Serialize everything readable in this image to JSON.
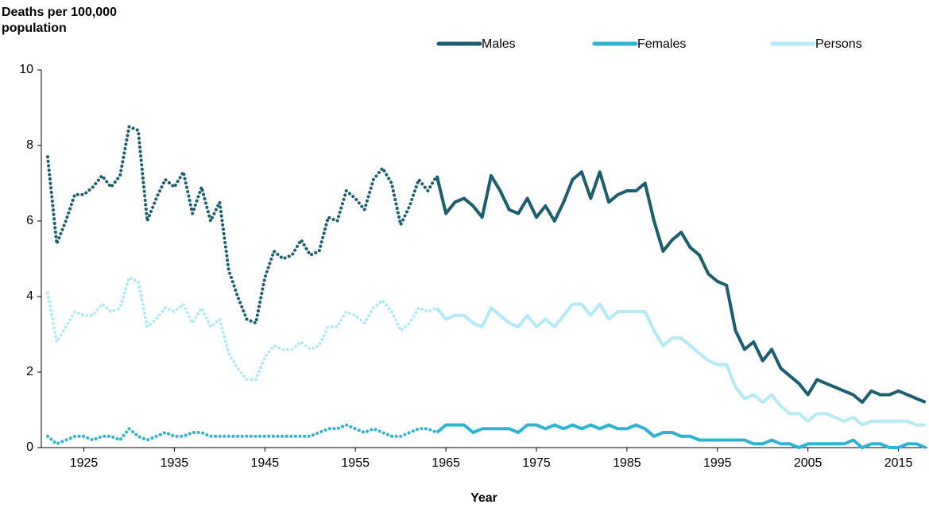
{
  "chart_data": {
    "type": "line",
    "y_label": "Deaths per 100,000 population",
    "x_label": "Year",
    "dotted_until": 1964,
    "x": [
      1921,
      1922,
      1923,
      1924,
      1925,
      1926,
      1927,
      1928,
      1929,
      1930,
      1931,
      1932,
      1933,
      1934,
      1935,
      1936,
      1937,
      1938,
      1939,
      1940,
      1941,
      1942,
      1943,
      1944,
      1945,
      1946,
      1947,
      1948,
      1949,
      1950,
      1951,
      1952,
      1953,
      1954,
      1955,
      1956,
      1957,
      1958,
      1959,
      1960,
      1961,
      1962,
      1963,
      1964,
      1965,
      1966,
      1967,
      1968,
      1969,
      1970,
      1971,
      1972,
      1973,
      1974,
      1975,
      1976,
      1977,
      1978,
      1979,
      1980,
      1981,
      1982,
      1983,
      1984,
      1985,
      1986,
      1987,
      1988,
      1989,
      1990,
      1991,
      1992,
      1993,
      1994,
      1995,
      1996,
      1997,
      1998,
      1999,
      2000,
      2001,
      2002,
      2003,
      2004,
      2005,
      2006,
      2007,
      2008,
      2009,
      2010,
      2011,
      2012,
      2013,
      2014,
      2015,
      2016,
      2017,
      2018
    ],
    "series": [
      {
        "name": "Males",
        "color": "#1b5e70",
        "values": [
          7.7,
          5.4,
          6.0,
          6.7,
          6.7,
          6.9,
          7.2,
          6.9,
          7.2,
          8.5,
          8.4,
          6.0,
          6.6,
          7.1,
          6.9,
          7.3,
          6.2,
          6.9,
          6.0,
          6.5,
          4.7,
          4.0,
          3.4,
          3.3,
          4.5,
          5.2,
          5.0,
          5.1,
          5.5,
          5.1,
          5.2,
          6.1,
          6.0,
          6.8,
          6.6,
          6.3,
          7.1,
          7.4,
          7.0,
          5.9,
          6.4,
          7.1,
          6.8,
          7.2,
          6.2,
          6.5,
          6.6,
          6.4,
          6.1,
          7.2,
          6.8,
          6.3,
          6.2,
          6.6,
          6.1,
          6.4,
          6.0,
          6.5,
          7.1,
          7.3,
          6.6,
          7.3,
          6.5,
          6.7,
          6.8,
          6.8,
          7.0,
          6.0,
          5.2,
          5.5,
          5.7,
          5.3,
          5.1,
          4.6,
          4.4,
          4.3,
          3.1,
          2.6,
          2.8,
          2.3,
          2.6,
          2.1,
          1.9,
          1.7,
          1.4,
          1.8,
          1.7,
          1.6,
          1.5,
          1.4,
          1.2,
          1.5,
          1.4,
          1.4,
          1.5,
          1.4,
          1.3,
          1.2
        ]
      },
      {
        "name": "Females",
        "color": "#2eb3d6",
        "values": [
          0.3,
          0.1,
          0.2,
          0.3,
          0.3,
          0.2,
          0.3,
          0.3,
          0.2,
          0.5,
          0.3,
          0.2,
          0.3,
          0.4,
          0.3,
          0.3,
          0.4,
          0.4,
          0.3,
          0.3,
          0.3,
          0.3,
          0.3,
          0.3,
          0.3,
          0.3,
          0.3,
          0.3,
          0.3,
          0.3,
          0.4,
          0.5,
          0.5,
          0.6,
          0.5,
          0.4,
          0.5,
          0.4,
          0.3,
          0.3,
          0.4,
          0.5,
          0.5,
          0.4,
          0.6,
          0.6,
          0.6,
          0.4,
          0.5,
          0.5,
          0.5,
          0.5,
          0.4,
          0.6,
          0.6,
          0.5,
          0.6,
          0.5,
          0.6,
          0.5,
          0.6,
          0.5,
          0.6,
          0.5,
          0.5,
          0.6,
          0.5,
          0.3,
          0.4,
          0.4,
          0.3,
          0.3,
          0.2,
          0.2,
          0.2,
          0.2,
          0.2,
          0.2,
          0.1,
          0.1,
          0.2,
          0.1,
          0.1,
          0.0,
          0.1,
          0.1,
          0.1,
          0.1,
          0.1,
          0.2,
          0.0,
          0.1,
          0.1,
          0.0,
          0.0,
          0.1,
          0.1,
          0.0
        ]
      },
      {
        "name": "Persons",
        "color": "#b3ebf7",
        "values": [
          4.1,
          2.8,
          3.2,
          3.6,
          3.5,
          3.5,
          3.8,
          3.6,
          3.7,
          4.5,
          4.4,
          3.2,
          3.4,
          3.7,
          3.6,
          3.8,
          3.3,
          3.7,
          3.2,
          3.4,
          2.5,
          2.1,
          1.8,
          1.8,
          2.4,
          2.7,
          2.6,
          2.6,
          2.8,
          2.6,
          2.7,
          3.2,
          3.2,
          3.6,
          3.5,
          3.3,
          3.7,
          3.9,
          3.6,
          3.1,
          3.3,
          3.7,
          3.6,
          3.7,
          3.4,
          3.5,
          3.5,
          3.3,
          3.2,
          3.7,
          3.5,
          3.3,
          3.2,
          3.5,
          3.2,
          3.4,
          3.2,
          3.5,
          3.8,
          3.8,
          3.5,
          3.8,
          3.4,
          3.6,
          3.6,
          3.6,
          3.6,
          3.1,
          2.7,
          2.9,
          2.9,
          2.7,
          2.5,
          2.3,
          2.2,
          2.2,
          1.6,
          1.3,
          1.4,
          1.2,
          1.4,
          1.1,
          0.9,
          0.9,
          0.7,
          0.9,
          0.9,
          0.8,
          0.7,
          0.8,
          0.6,
          0.7,
          0.7,
          0.7,
          0.7,
          0.7,
          0.6,
          0.6
        ]
      }
    ],
    "xlim": [
      1920.3,
      2018.2
    ],
    "xticks": [
      1925,
      1935,
      1945,
      1955,
      1965,
      1975,
      1985,
      1995,
      2005,
      2015
    ],
    "ylim": [
      0,
      10
    ],
    "yticks": [
      0,
      2,
      4,
      6,
      8,
      10
    ],
    "grid": false,
    "legend": "top-right"
  }
}
